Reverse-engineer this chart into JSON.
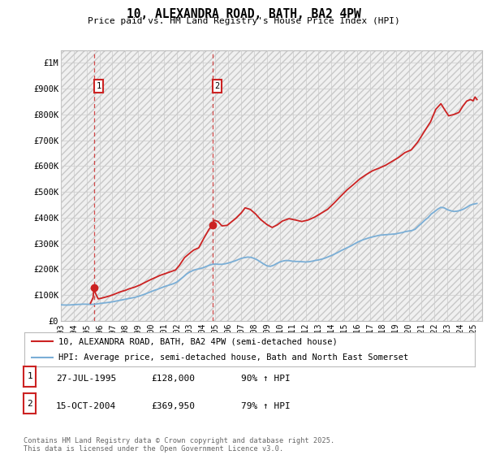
{
  "title": "10, ALEXANDRA ROAD, BATH, BA2 4PW",
  "subtitle": "Price paid vs. HM Land Registry's House Price Index (HPI)",
  "ylim": [
    0,
    1050000
  ],
  "yticks": [
    0,
    100000,
    200000,
    300000,
    400000,
    500000,
    600000,
    700000,
    800000,
    900000,
    1000000
  ],
  "ytick_labels": [
    "£0",
    "£100K",
    "£200K",
    "£300K",
    "£400K",
    "£500K",
    "£600K",
    "£700K",
    "£800K",
    "£900K",
    "£1M"
  ],
  "xlim_start": 1993.0,
  "xlim_end": 2025.7,
  "xticks": [
    1993,
    1994,
    1995,
    1996,
    1997,
    1998,
    1999,
    2000,
    2001,
    2002,
    2003,
    2004,
    2005,
    2006,
    2007,
    2008,
    2009,
    2010,
    2011,
    2012,
    2013,
    2014,
    2015,
    2016,
    2017,
    2018,
    2019,
    2020,
    2021,
    2022,
    2023,
    2024,
    2025
  ],
  "hpi_color": "#7aaed6",
  "price_color": "#cc2222",
  "marker_color": "#cc2222",
  "sale1_x": 1995.57,
  "sale1_y": 128000,
  "sale2_x": 2004.79,
  "sale2_y": 369950,
  "label1": "1",
  "label2": "2",
  "legend_line1": "10, ALEXANDRA ROAD, BATH, BA2 4PW (semi-detached house)",
  "legend_line2": "HPI: Average price, semi-detached house, Bath and North East Somerset",
  "table_row1": [
    "1",
    "27-JUL-1995",
    "£128,000",
    "90% ↑ HPI"
  ],
  "table_row2": [
    "2",
    "15-OCT-2004",
    "£369,950",
    "79% ↑ HPI"
  ],
  "footer": "Contains HM Land Registry data © Crown copyright and database right 2025.\nThis data is licensed under the Open Government Licence v3.0.",
  "bg_color": "#ffffff",
  "grid_color": "#cccccc",
  "hpi_data": [
    [
      1993.0,
      62000
    ],
    [
      1993.25,
      61200
    ],
    [
      1993.5,
      61000
    ],
    [
      1993.75,
      61500
    ],
    [
      1994.0,
      62500
    ],
    [
      1994.25,
      63000
    ],
    [
      1994.5,
      63800
    ],
    [
      1994.75,
      64500
    ],
    [
      1995.0,
      64200
    ],
    [
      1995.25,
      63500
    ],
    [
      1995.5,
      63800
    ],
    [
      1995.75,
      65000
    ],
    [
      1996.0,
      67000
    ],
    [
      1996.25,
      68500
    ],
    [
      1996.5,
      70000
    ],
    [
      1996.75,
      71500
    ],
    [
      1997.0,
      73500
    ],
    [
      1997.25,
      76000
    ],
    [
      1997.5,
      78500
    ],
    [
      1997.75,
      81000
    ],
    [
      1998.0,
      83500
    ],
    [
      1998.25,
      86000
    ],
    [
      1998.5,
      88500
    ],
    [
      1998.75,
      91000
    ],
    [
      1999.0,
      94500
    ],
    [
      1999.25,
      98500
    ],
    [
      1999.5,
      103000
    ],
    [
      1999.75,
      108000
    ],
    [
      2000.0,
      113000
    ],
    [
      2000.25,
      118000
    ],
    [
      2000.5,
      122000
    ],
    [
      2000.75,
      127000
    ],
    [
      2001.0,
      132000
    ],
    [
      2001.25,
      136000
    ],
    [
      2001.5,
      140000
    ],
    [
      2001.75,
      144000
    ],
    [
      2002.0,
      150000
    ],
    [
      2002.25,
      160000
    ],
    [
      2002.5,
      170000
    ],
    [
      2002.75,
      181000
    ],
    [
      2003.0,
      189000
    ],
    [
      2003.25,
      195000
    ],
    [
      2003.5,
      199000
    ],
    [
      2003.75,
      202000
    ],
    [
      2004.0,
      205000
    ],
    [
      2004.25,
      210000
    ],
    [
      2004.5,
      215000
    ],
    [
      2004.75,
      219000
    ],
    [
      2005.0,
      220000
    ],
    [
      2005.25,
      219000
    ],
    [
      2005.5,
      219000
    ],
    [
      2005.75,
      221000
    ],
    [
      2006.0,
      224000
    ],
    [
      2006.25,
      228000
    ],
    [
      2006.5,
      232000
    ],
    [
      2006.75,
      237000
    ],
    [
      2007.0,
      242000
    ],
    [
      2007.25,
      245000
    ],
    [
      2007.5,
      247000
    ],
    [
      2007.75,
      246000
    ],
    [
      2008.0,
      242000
    ],
    [
      2008.25,
      236000
    ],
    [
      2008.5,
      228000
    ],
    [
      2008.75,
      220000
    ],
    [
      2009.0,
      213000
    ],
    [
      2009.25,
      211000
    ],
    [
      2009.5,
      215000
    ],
    [
      2009.75,
      222000
    ],
    [
      2010.0,
      228000
    ],
    [
      2010.25,
      232000
    ],
    [
      2010.5,
      234000
    ],
    [
      2010.75,
      233000
    ],
    [
      2011.0,
      231000
    ],
    [
      2011.25,
      230000
    ],
    [
      2011.5,
      230000
    ],
    [
      2011.75,
      229000
    ],
    [
      2012.0,
      228000
    ],
    [
      2012.25,
      229000
    ],
    [
      2012.5,
      231000
    ],
    [
      2012.75,
      234000
    ],
    [
      2013.0,
      236000
    ],
    [
      2013.25,
      239000
    ],
    [
      2013.5,
      243000
    ],
    [
      2013.75,
      248000
    ],
    [
      2014.0,
      253000
    ],
    [
      2014.25,
      259000
    ],
    [
      2014.5,
      265000
    ],
    [
      2014.75,
      272000
    ],
    [
      2015.0,
      278000
    ],
    [
      2015.25,
      284000
    ],
    [
      2015.5,
      290000
    ],
    [
      2015.75,
      297000
    ],
    [
      2016.0,
      304000
    ],
    [
      2016.25,
      310000
    ],
    [
      2016.5,
      315000
    ],
    [
      2016.75,
      319000
    ],
    [
      2017.0,
      323000
    ],
    [
      2017.25,
      326000
    ],
    [
      2017.5,
      329000
    ],
    [
      2017.75,
      332000
    ],
    [
      2018.0,
      333000
    ],
    [
      2018.25,
      334000
    ],
    [
      2018.5,
      335000
    ],
    [
      2018.75,
      336000
    ],
    [
      2019.0,
      337000
    ],
    [
      2019.25,
      340000
    ],
    [
      2019.5,
      342000
    ],
    [
      2019.75,
      346000
    ],
    [
      2020.0,
      348000
    ],
    [
      2020.25,
      350000
    ],
    [
      2020.5,
      355000
    ],
    [
      2020.75,
      367000
    ],
    [
      2021.0,
      378000
    ],
    [
      2021.25,
      390000
    ],
    [
      2021.5,
      400000
    ],
    [
      2021.75,
      414000
    ],
    [
      2022.0,
      423000
    ],
    [
      2022.25,
      433000
    ],
    [
      2022.5,
      440000
    ],
    [
      2022.75,
      438000
    ],
    [
      2023.0,
      431000
    ],
    [
      2023.25,
      427000
    ],
    [
      2023.5,
      424000
    ],
    [
      2023.75,
      425000
    ],
    [
      2024.0,
      428000
    ],
    [
      2024.25,
      433000
    ],
    [
      2024.5,
      440000
    ],
    [
      2024.75,
      448000
    ],
    [
      2025.0,
      452000
    ],
    [
      2025.3,
      455000
    ]
  ],
  "price_data": [
    [
      1995.3,
      68000
    ],
    [
      1995.5,
      90000
    ],
    [
      1995.57,
      128000
    ],
    [
      1995.7,
      105000
    ],
    [
      1995.9,
      85000
    ],
    [
      1996.1,
      87000
    ],
    [
      1996.4,
      91000
    ],
    [
      1996.7,
      95000
    ],
    [
      1997.0,
      100000
    ],
    [
      1997.3,
      106000
    ],
    [
      1997.6,
      112000
    ],
    [
      1998.0,
      118000
    ],
    [
      1998.3,
      124000
    ],
    [
      1998.7,
      130000
    ],
    [
      1999.1,
      138000
    ],
    [
      1999.5,
      148000
    ],
    [
      1999.9,
      158000
    ],
    [
      2000.3,
      167000
    ],
    [
      2000.7,
      176000
    ],
    [
      2001.1,
      183000
    ],
    [
      2001.5,
      190000
    ],
    [
      2001.9,
      197000
    ],
    [
      2002.2,
      215000
    ],
    [
      2002.6,
      245000
    ],
    [
      2003.0,
      262000
    ],
    [
      2003.3,
      274000
    ],
    [
      2003.7,
      283000
    ],
    [
      2004.1,
      320000
    ],
    [
      2004.5,
      355000
    ],
    [
      2004.79,
      369950
    ],
    [
      2004.9,
      390000
    ],
    [
      2005.2,
      385000
    ],
    [
      2005.5,
      368000
    ],
    [
      2005.9,
      370000
    ],
    [
      2006.2,
      382000
    ],
    [
      2006.6,
      398000
    ],
    [
      2007.0,
      418000
    ],
    [
      2007.3,
      438000
    ],
    [
      2007.7,
      432000
    ],
    [
      2008.1,
      415000
    ],
    [
      2008.5,
      393000
    ],
    [
      2009.0,
      373000
    ],
    [
      2009.4,
      362000
    ],
    [
      2009.8,
      372000
    ],
    [
      2010.2,
      387000
    ],
    [
      2010.7,
      396000
    ],
    [
      2011.2,
      391000
    ],
    [
      2011.7,
      385000
    ],
    [
      2012.2,
      391000
    ],
    [
      2012.7,
      402000
    ],
    [
      2013.2,
      417000
    ],
    [
      2013.7,
      432000
    ],
    [
      2014.2,
      456000
    ],
    [
      2014.7,
      482000
    ],
    [
      2015.2,
      507000
    ],
    [
      2015.7,
      528000
    ],
    [
      2016.2,
      550000
    ],
    [
      2016.7,
      567000
    ],
    [
      2017.2,
      582000
    ],
    [
      2017.7,
      592000
    ],
    [
      2018.2,
      603000
    ],
    [
      2018.7,
      618000
    ],
    [
      2019.2,
      633000
    ],
    [
      2019.7,
      652000
    ],
    [
      2020.2,
      663000
    ],
    [
      2020.7,
      693000
    ],
    [
      2021.2,
      733000
    ],
    [
      2021.7,
      772000
    ],
    [
      2022.1,
      820000
    ],
    [
      2022.5,
      842000
    ],
    [
      2022.8,
      818000
    ],
    [
      2023.1,
      795000
    ],
    [
      2023.5,
      800000
    ],
    [
      2023.9,
      808000
    ],
    [
      2024.2,
      832000
    ],
    [
      2024.5,
      852000
    ],
    [
      2024.8,
      858000
    ],
    [
      2025.0,
      853000
    ],
    [
      2025.15,
      868000
    ],
    [
      2025.3,
      858000
    ]
  ]
}
